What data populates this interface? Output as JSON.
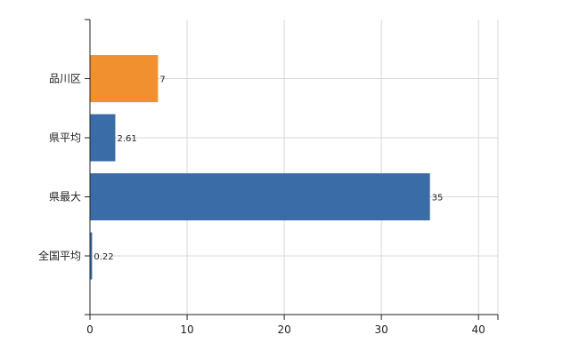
{
  "chart_data": {
    "type": "bar",
    "orientation": "horizontal",
    "categories": [
      "品川区",
      "県平均",
      "県最大",
      "全国平均"
    ],
    "values": [
      7,
      2.61,
      35,
      0.22
    ],
    "data_labels": [
      "7",
      "2.61",
      "35",
      "0.22"
    ],
    "xlim": [
      0,
      42
    ],
    "xticks": [
      0,
      10,
      20,
      30,
      40
    ],
    "tick_labels": [
      "0",
      "10",
      "20",
      "30",
      "40"
    ],
    "grid": true,
    "title": "",
    "xlabel": "",
    "ylabel": "",
    "colors": {
      "highlight": "#f0902f",
      "default": "#3a6ca8",
      "grid": "#d8d8d8",
      "axis": "#222222"
    },
    "highlight_index": 0
  }
}
